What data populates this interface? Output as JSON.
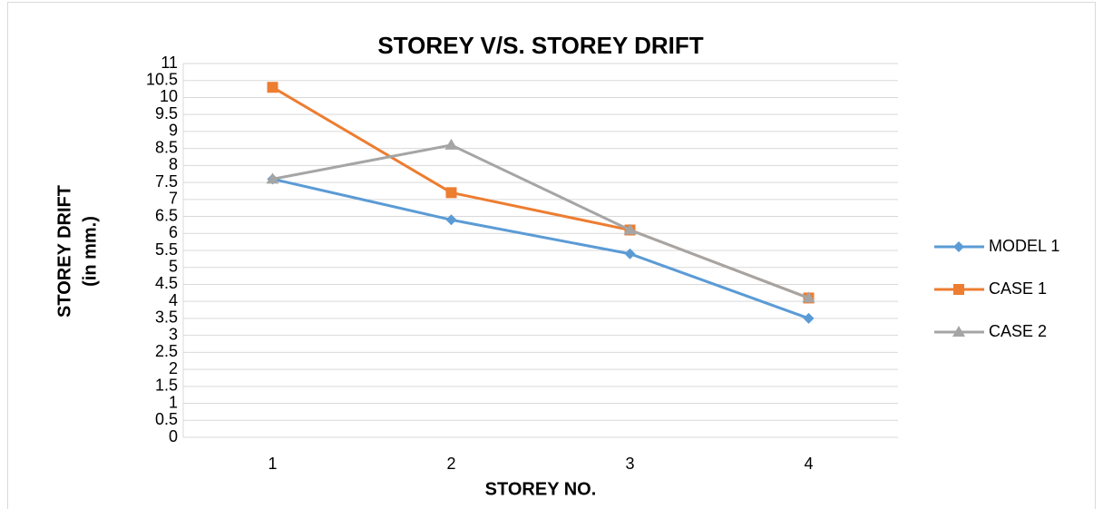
{
  "chart_data": {
    "type": "line",
    "title": "STOREY V/S. STOREY DRIFT",
    "xlabel": "STOREY NO.",
    "ylabel": [
      "STOREY DRIFT",
      "(in mm.)"
    ],
    "categories": [
      "1",
      "2",
      "3",
      "4"
    ],
    "series": [
      {
        "name": "MODEL 1",
        "color": "#5b9bd5",
        "marker": "diamond",
        "values": [
          7.6,
          6.4,
          5.4,
          3.5
        ]
      },
      {
        "name": "CASE 1",
        "color": "#ed7d31",
        "marker": "square",
        "values": [
          10.3,
          7.2,
          6.1,
          4.1
        ]
      },
      {
        "name": "CASE 2",
        "color": "#a5a5a5",
        "marker": "triangle",
        "values": [
          7.6,
          8.6,
          6.1,
          4.1
        ]
      }
    ],
    "ylim": [
      0,
      11
    ],
    "yticks": [
      0,
      0.5,
      1,
      1.5,
      2,
      2.5,
      3,
      3.5,
      4,
      4.5,
      5,
      5.5,
      6,
      6.5,
      7,
      7.5,
      8,
      8.5,
      9,
      9.5,
      10,
      10.5,
      11
    ],
    "grid": true,
    "legend": "right"
  }
}
